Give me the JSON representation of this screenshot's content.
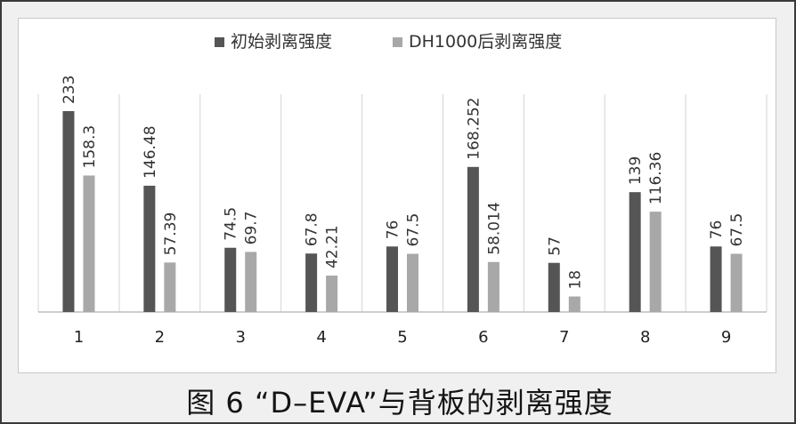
{
  "caption": "图 6 “D–EVA”与背板的剥离强度",
  "chart_data": {
    "type": "bar",
    "categories": [
      "1",
      "2",
      "3",
      "4",
      "5",
      "6",
      "7",
      "8",
      "9"
    ],
    "series": [
      {
        "name": "初始剥离强度",
        "color": "#555555",
        "values": [
          233,
          146.48,
          74.5,
          67.8,
          76,
          168.252,
          57,
          139,
          76
        ],
        "labels": [
          "233",
          "146.48",
          "74.5",
          "67.8",
          "76",
          "168.252",
          "57",
          "139",
          "76"
        ]
      },
      {
        "name": "DH1000后剥离强度",
        "color": "#a8a8a8",
        "values": [
          158.3,
          57.39,
          69.7,
          42.21,
          67.5,
          58.014,
          18,
          116.36,
          67.5
        ],
        "labels": [
          "158.3",
          "57.39",
          "69.7",
          "42.21",
          "67.5",
          "58.014",
          "18",
          "116.36",
          "67.5"
        ]
      }
    ],
    "ylim": [
      0,
      233
    ],
    "legend_position": "top-center",
    "grid": "vertical separators between categories"
  }
}
